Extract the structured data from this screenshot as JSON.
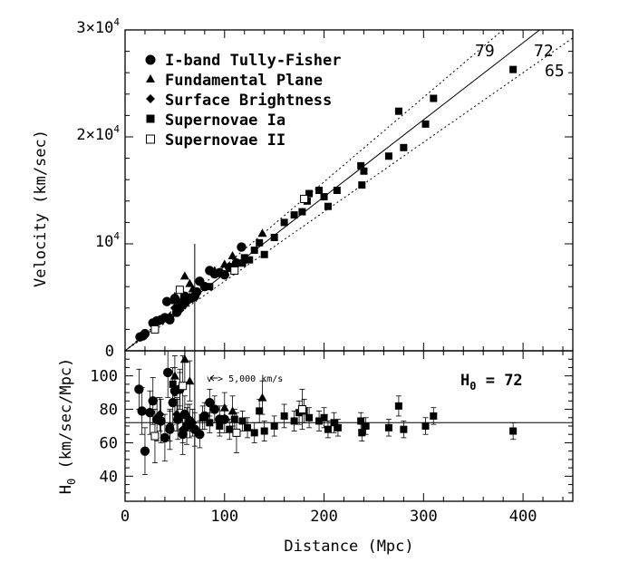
{
  "chart_data": [
    {
      "type": "scatter",
      "panel": "top",
      "title": "",
      "xlabel": "Distance (Mpc)",
      "ylabel": "Velocity (km/sec)",
      "xlim": [
        0,
        450
      ],
      "ylim": [
        0,
        30000
      ],
      "x_ticks": [
        0,
        100,
        200,
        300,
        400
      ],
      "x_tick_labels": [
        "0",
        "100",
        "200",
        "300",
        "400"
      ],
      "y_tick_labels": [
        {
          "value": 10000,
          "mantissa": "10",
          "exp": "4"
        },
        {
          "value": 20000,
          "mantissa": "2×10",
          "exp": "4"
        },
        {
          "value": 30000,
          "mantissa": "3×10",
          "exp": "4"
        }
      ],
      "legend": {
        "placement": "top-left",
        "entries": [
          {
            "label": "I-band Tully-Fisher",
            "marker": "circle"
          },
          {
            "label": "Fundamental Plane",
            "marker": "triangle"
          },
          {
            "label": "Surface Brightness",
            "marker": "diamond"
          },
          {
            "label": "Supernovae Ia",
            "marker": "square"
          },
          {
            "label": "Supernovae II",
            "marker": "open-square"
          }
        ]
      },
      "lines": [
        {
          "label": "79",
          "slope": 79,
          "style": "dotted"
        },
        {
          "label": "72",
          "slope": 72,
          "style": "solid"
        },
        {
          "label": "65",
          "slope": 65,
          "style": "dotted"
        }
      ],
      "vertical_line_x": 70,
      "series": [
        {
          "name": "I-band Tully-Fisher",
          "marker": "circle",
          "points": [
            [
              15,
              1300
            ],
            [
              18,
              1400
            ],
            [
              20,
              1600
            ],
            [
              28,
              2600
            ],
            [
              32,
              2800
            ],
            [
              36,
              2900
            ],
            [
              40,
              3100
            ],
            [
              42,
              4600
            ],
            [
              45,
              2900
            ],
            [
              50,
              4900
            ],
            [
              52,
              3600
            ],
            [
              55,
              4100
            ],
            [
              58,
              4600
            ],
            [
              60,
              5100
            ],
            [
              62,
              4700
            ],
            [
              66,
              4900
            ],
            [
              70,
              5100
            ],
            [
              72,
              5500
            ],
            [
              75,
              6500
            ],
            [
              80,
              6000
            ],
            [
              85,
              7500
            ],
            [
              90,
              7200
            ],
            [
              95,
              7300
            ],
            [
              100,
              7100
            ],
            [
              105,
              7800
            ],
            [
              112,
              8200
            ],
            [
              117,
              9700
            ]
          ]
        },
        {
          "name": "Fundamental Plane",
          "marker": "triangle",
          "points": [
            [
              50,
              5100
            ],
            [
              60,
              7000
            ],
            [
              65,
              6300
            ],
            [
              68,
              5800
            ],
            [
              90,
              7500
            ],
            [
              100,
              8100
            ],
            [
              108,
              8900
            ],
            [
              138,
              11000
            ]
          ]
        },
        {
          "name": "Surface Brightness",
          "marker": "diamond",
          "points": [
            [
              35,
              2800
            ],
            [
              45,
              3200
            ],
            [
              50,
              4000
            ],
            [
              55,
              3800
            ],
            [
              60,
              4300
            ],
            [
              65,
              5000
            ],
            [
              70,
              5300
            ]
          ]
        },
        {
          "name": "Supernovae Ia",
          "marker": "square",
          "points": [
            [
              50,
              4700
            ],
            [
              85,
              6000
            ],
            [
              110,
              7800
            ],
            [
              118,
              8200
            ],
            [
              120,
              8700
            ],
            [
              125,
              8500
            ],
            [
              130,
              9400
            ],
            [
              135,
              10100
            ],
            [
              140,
              9000
            ],
            [
              150,
              10600
            ],
            [
              160,
              12000
            ],
            [
              170,
              12700
            ],
            [
              178,
              13000
            ],
            [
              183,
              14000
            ],
            [
              185,
              14700
            ],
            [
              195,
              15000
            ],
            [
              200,
              14400
            ],
            [
              204,
              13500
            ],
            [
              213,
              15000
            ],
            [
              237,
              17300
            ],
            [
              238,
              15500
            ],
            [
              240,
              16800
            ],
            [
              265,
              18200
            ],
            [
              275,
              22400
            ],
            [
              280,
              19000
            ],
            [
              302,
              21200
            ],
            [
              310,
              23600
            ],
            [
              390,
              26300
            ]
          ]
        },
        {
          "name": "Supernovae II",
          "marker": "open-square",
          "points": [
            [
              30,
              2000
            ],
            [
              55,
              5700
            ],
            [
              110,
              7500
            ],
            [
              180,
              14200
            ]
          ]
        }
      ]
    },
    {
      "type": "scatter",
      "panel": "bottom",
      "title": "",
      "xlabel": "Distance (Mpc)",
      "ylabel": "H0 (km/sec/Mpc)",
      "xlim": [
        0,
        450
      ],
      "ylim": [
        25,
        115
      ],
      "y_ticks": [
        40,
        60,
        80,
        100
      ],
      "y_tick_labels": [
        "40",
        "60",
        "80",
        "100"
      ],
      "reference_h0": 72,
      "vertical_line_x": 70,
      "annotation": "v > 5,000 km/s",
      "h0_label": {
        "symbol": "H",
        "subscript": "0",
        "text": " = 72"
      },
      "series": [
        {
          "name": "I-band Tully-Fisher",
          "marker": "circle",
          "points": [
            [
              14,
              92,
              12
            ],
            [
              17,
              79,
              14
            ],
            [
              20,
              55,
              14
            ],
            [
              25,
              78,
              13
            ],
            [
              28,
              85,
              14
            ],
            [
              32,
              74,
              13
            ],
            [
              36,
              73,
              13
            ],
            [
              40,
              63,
              14
            ],
            [
              43,
              102,
              15
            ],
            [
              45,
              68,
              12
            ],
            [
              48,
              84,
              13
            ],
            [
              50,
              91,
              14
            ],
            [
              53,
              74,
              12
            ],
            [
              55,
              92,
              12
            ],
            [
              58,
              65,
              12
            ],
            [
              60,
              77,
              11
            ],
            [
              62,
              70,
              11
            ],
            [
              65,
              73,
              10
            ],
            [
              70,
              68,
              10
            ],
            [
              75,
              65,
              8
            ],
            [
              80,
              76,
              8
            ],
            [
              85,
              84,
              8
            ],
            [
              90,
              80,
              8
            ],
            [
              95,
              74,
              8
            ],
            [
              100,
              74,
              8
            ]
          ]
        },
        {
          "name": "Fundamental Plane",
          "marker": "triangle",
          "points": [
            [
              50,
              100,
              12
            ],
            [
              60,
              110,
              14
            ],
            [
              65,
              97,
              12
            ],
            [
              100,
              81,
              9
            ],
            [
              108,
              79,
              9
            ],
            [
              138,
              87,
              10
            ]
          ]
        },
        {
          "name": "Surface Brightness",
          "marker": "diamond",
          "points": [
            [
              35,
              77,
              10
            ],
            [
              45,
              70,
              9
            ],
            [
              52,
              77,
              10
            ],
            [
              58,
              68,
              8
            ],
            [
              63,
              75,
              8
            ],
            [
              68,
              72,
              8
            ]
          ]
        },
        {
          "name": "Supernovae Ia",
          "marker": "square",
          "points": [
            [
              48,
              95,
              10
            ],
            [
              55,
              92,
              10
            ],
            [
              78,
              75,
              7
            ],
            [
              85,
              72,
              6
            ],
            [
              95,
              70,
              6
            ],
            [
              105,
              68,
              6
            ],
            [
              110,
              74,
              6
            ],
            [
              118,
              73,
              6
            ],
            [
              123,
              69,
              6
            ],
            [
              130,
              66,
              6
            ],
            [
              135,
              79,
              7
            ],
            [
              140,
              67,
              6
            ],
            [
              150,
              70,
              6
            ],
            [
              160,
              76,
              7
            ],
            [
              170,
              73,
              6
            ],
            [
              175,
              78,
              7
            ],
            [
              180,
              79,
              7
            ],
            [
              185,
              75,
              6
            ],
            [
              195,
              73,
              6
            ],
            [
              200,
              75,
              6
            ],
            [
              204,
              68,
              5
            ],
            [
              210,
              72,
              6
            ],
            [
              214,
              69,
              5
            ],
            [
              237,
              73,
              5
            ],
            [
              238,
              66,
              5
            ],
            [
              242,
              70,
              5
            ],
            [
              265,
              69,
              5
            ],
            [
              275,
              82,
              6
            ],
            [
              280,
              68,
              5
            ],
            [
              302,
              70,
              5
            ],
            [
              310,
              76,
              5
            ],
            [
              390,
              67,
              5
            ]
          ]
        },
        {
          "name": "Supernovae II",
          "marker": "open-square",
          "points": [
            [
              30,
              64,
              16
            ],
            [
              58,
              94,
              18
            ],
            [
              112,
              66,
              12
            ],
            [
              178,
              80,
              12
            ]
          ]
        }
      ]
    }
  ]
}
